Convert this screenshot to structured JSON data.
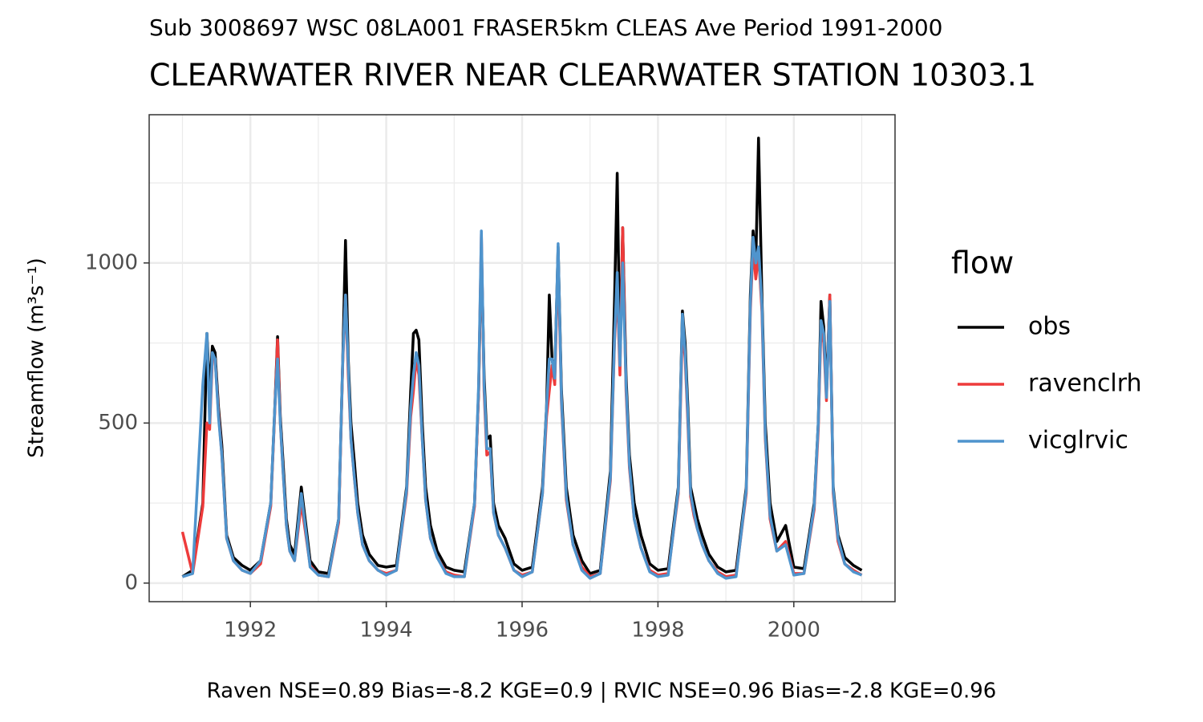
{
  "chart_data": {
    "type": "line",
    "subtitle": "Sub 3008697 WSC 08LA001 FRASER5km CLEAS Ave Period 1991-2000",
    "title": "CLEARWATER RIVER NEAR CLEARWATER STATION 10303.1",
    "ylabel": "Streamflow (m³s⁻¹)",
    "caption": "Raven NSE=0.89 Bias=-8.2 KGE=0.9 | RVIC NSE=0.96 Bias=-2.8 KGE=0.96",
    "legend_title": "flow",
    "legend_position": "right",
    "grid": true,
    "xlim": [
      1990.51,
      2001.49
    ],
    "ylim": [
      -58,
      1463
    ],
    "xticks": [
      1992,
      1994,
      1996,
      1998,
      2000
    ],
    "yticks": [
      0,
      500,
      1000
    ],
    "minor_xticks": [
      1991,
      1993,
      1995,
      1997,
      1999,
      2001
    ],
    "minor_yticks": [
      250,
      750,
      1250
    ],
    "x": [
      1991,
      1991.15,
      1991.3,
      1991.36,
      1991.4,
      1991.44,
      1991.48,
      1991.53,
      1991.58,
      1991.65,
      1991.75,
      1991.88,
      1992,
      1992.15,
      1992.3,
      1992.36,
      1992.4,
      1992.44,
      1992.48,
      1992.53,
      1992.58,
      1992.65,
      1992.75,
      1992.88,
      1993,
      1993.15,
      1993.3,
      1993.36,
      1993.4,
      1993.44,
      1993.48,
      1993.53,
      1993.58,
      1993.65,
      1993.75,
      1993.88,
      1994,
      1994.15,
      1994.3,
      1994.36,
      1994.4,
      1994.44,
      1994.48,
      1994.53,
      1994.58,
      1994.65,
      1994.75,
      1994.88,
      1995,
      1995.15,
      1995.3,
      1995.36,
      1995.4,
      1995.44,
      1995.48,
      1995.53,
      1995.58,
      1995.65,
      1995.75,
      1995.88,
      1996,
      1996.15,
      1996.3,
      1996.36,
      1996.4,
      1996.44,
      1996.48,
      1996.53,
      1996.58,
      1996.65,
      1996.75,
      1996.88,
      1997,
      1997.15,
      1997.3,
      1997.36,
      1997.4,
      1997.44,
      1997.48,
      1997.53,
      1997.58,
      1997.65,
      1997.75,
      1997.88,
      1998,
      1998.15,
      1998.3,
      1998.36,
      1998.4,
      1998.44,
      1998.48,
      1998.53,
      1998.58,
      1998.65,
      1998.75,
      1998.88,
      1999,
      1999.15,
      1999.3,
      1999.36,
      1999.4,
      1999.44,
      1999.48,
      1999.53,
      1999.58,
      1999.65,
      1999.75,
      1999.88,
      2000,
      2000.15,
      2000.3,
      2000.36,
      2000.4,
      2000.44,
      2000.48,
      2000.53,
      2000.58,
      2000.65,
      2000.75,
      2000.88,
      2001
    ],
    "series": [
      {
        "name": "obs",
        "color": "#000000",
        "values": [
          20,
          40,
          250,
          780,
          600,
          740,
          720,
          550,
          430,
          150,
          80,
          55,
          40,
          70,
          250,
          550,
          770,
          520,
          380,
          200,
          120,
          90,
          300,
          70,
          35,
          30,
          200,
          700,
          1070,
          700,
          500,
          380,
          250,
          150,
          90,
          55,
          50,
          55,
          300,
          600,
          780,
          790,
          760,
          500,
          300,
          180,
          100,
          50,
          40,
          35,
          250,
          600,
          1050,
          650,
          450,
          460,
          250,
          180,
          140,
          60,
          40,
          50,
          300,
          550,
          900,
          700,
          650,
          1050,
          600,
          300,
          150,
          70,
          30,
          40,
          350,
          880,
          1280,
          700,
          1110,
          650,
          400,
          250,
          150,
          60,
          40,
          45,
          300,
          850,
          750,
          550,
          300,
          250,
          200,
          150,
          90,
          50,
          35,
          40,
          300,
          900,
          1100,
          1000,
          1390,
          900,
          500,
          250,
          130,
          180,
          50,
          45,
          250,
          500,
          880,
          800,
          600,
          900,
          300,
          150,
          80,
          55,
          40
        ]
      },
      {
        "name": "ravenclrh",
        "color": "#ee3b3b",
        "values": [
          160,
          30,
          240,
          500,
          480,
          700,
          700,
          530,
          400,
          140,
          70,
          40,
          30,
          60,
          240,
          540,
          760,
          500,
          350,
          180,
          100,
          70,
          250,
          55,
          25,
          20,
          190,
          690,
          900,
          650,
          450,
          330,
          220,
          120,
          70,
          40,
          30,
          40,
          280,
          520,
          600,
          700,
          650,
          450,
          260,
          140,
          80,
          35,
          25,
          20,
          240,
          600,
          1090,
          600,
          400,
          410,
          220,
          150,
          110,
          40,
          25,
          35,
          280,
          520,
          600,
          680,
          620,
          1020,
          560,
          260,
          120,
          50,
          20,
          30,
          320,
          750,
          930,
          650,
          1110,
          600,
          360,
          200,
          110,
          40,
          25,
          30,
          280,
          800,
          700,
          500,
          270,
          210,
          170,
          120,
          70,
          35,
          20,
          25,
          280,
          850,
          1050,
          950,
          1030,
          850,
          450,
          200,
          100,
          130,
          30,
          30,
          230,
          480,
          800,
          750,
          570,
          900,
          280,
          130,
          60,
          40,
          25
        ]
      },
      {
        "name": "vicglrvic",
        "color": "#4f94cd",
        "values": [
          20,
          30,
          620,
          780,
          500,
          720,
          700,
          520,
          400,
          140,
          70,
          40,
          30,
          70,
          250,
          550,
          700,
          500,
          350,
          180,
          100,
          70,
          280,
          50,
          25,
          20,
          200,
          700,
          900,
          680,
          450,
          330,
          220,
          120,
          70,
          40,
          25,
          40,
          290,
          550,
          650,
          720,
          680,
          450,
          260,
          140,
          80,
          30,
          20,
          20,
          250,
          620,
          1100,
          620,
          420,
          420,
          220,
          150,
          110,
          40,
          20,
          35,
          280,
          550,
          700,
          700,
          640,
          1060,
          570,
          270,
          120,
          40,
          15,
          30,
          330,
          760,
          970,
          680,
          1000,
          620,
          370,
          200,
          110,
          35,
          20,
          25,
          290,
          840,
          720,
          520,
          280,
          220,
          170,
          120,
          70,
          30,
          15,
          20,
          290,
          870,
          1080,
          1000,
          1050,
          870,
          460,
          210,
          100,
          120,
          25,
          30,
          240,
          500,
          820,
          780,
          580,
          880,
          290,
          140,
          60,
          35,
          25
        ]
      }
    ]
  }
}
